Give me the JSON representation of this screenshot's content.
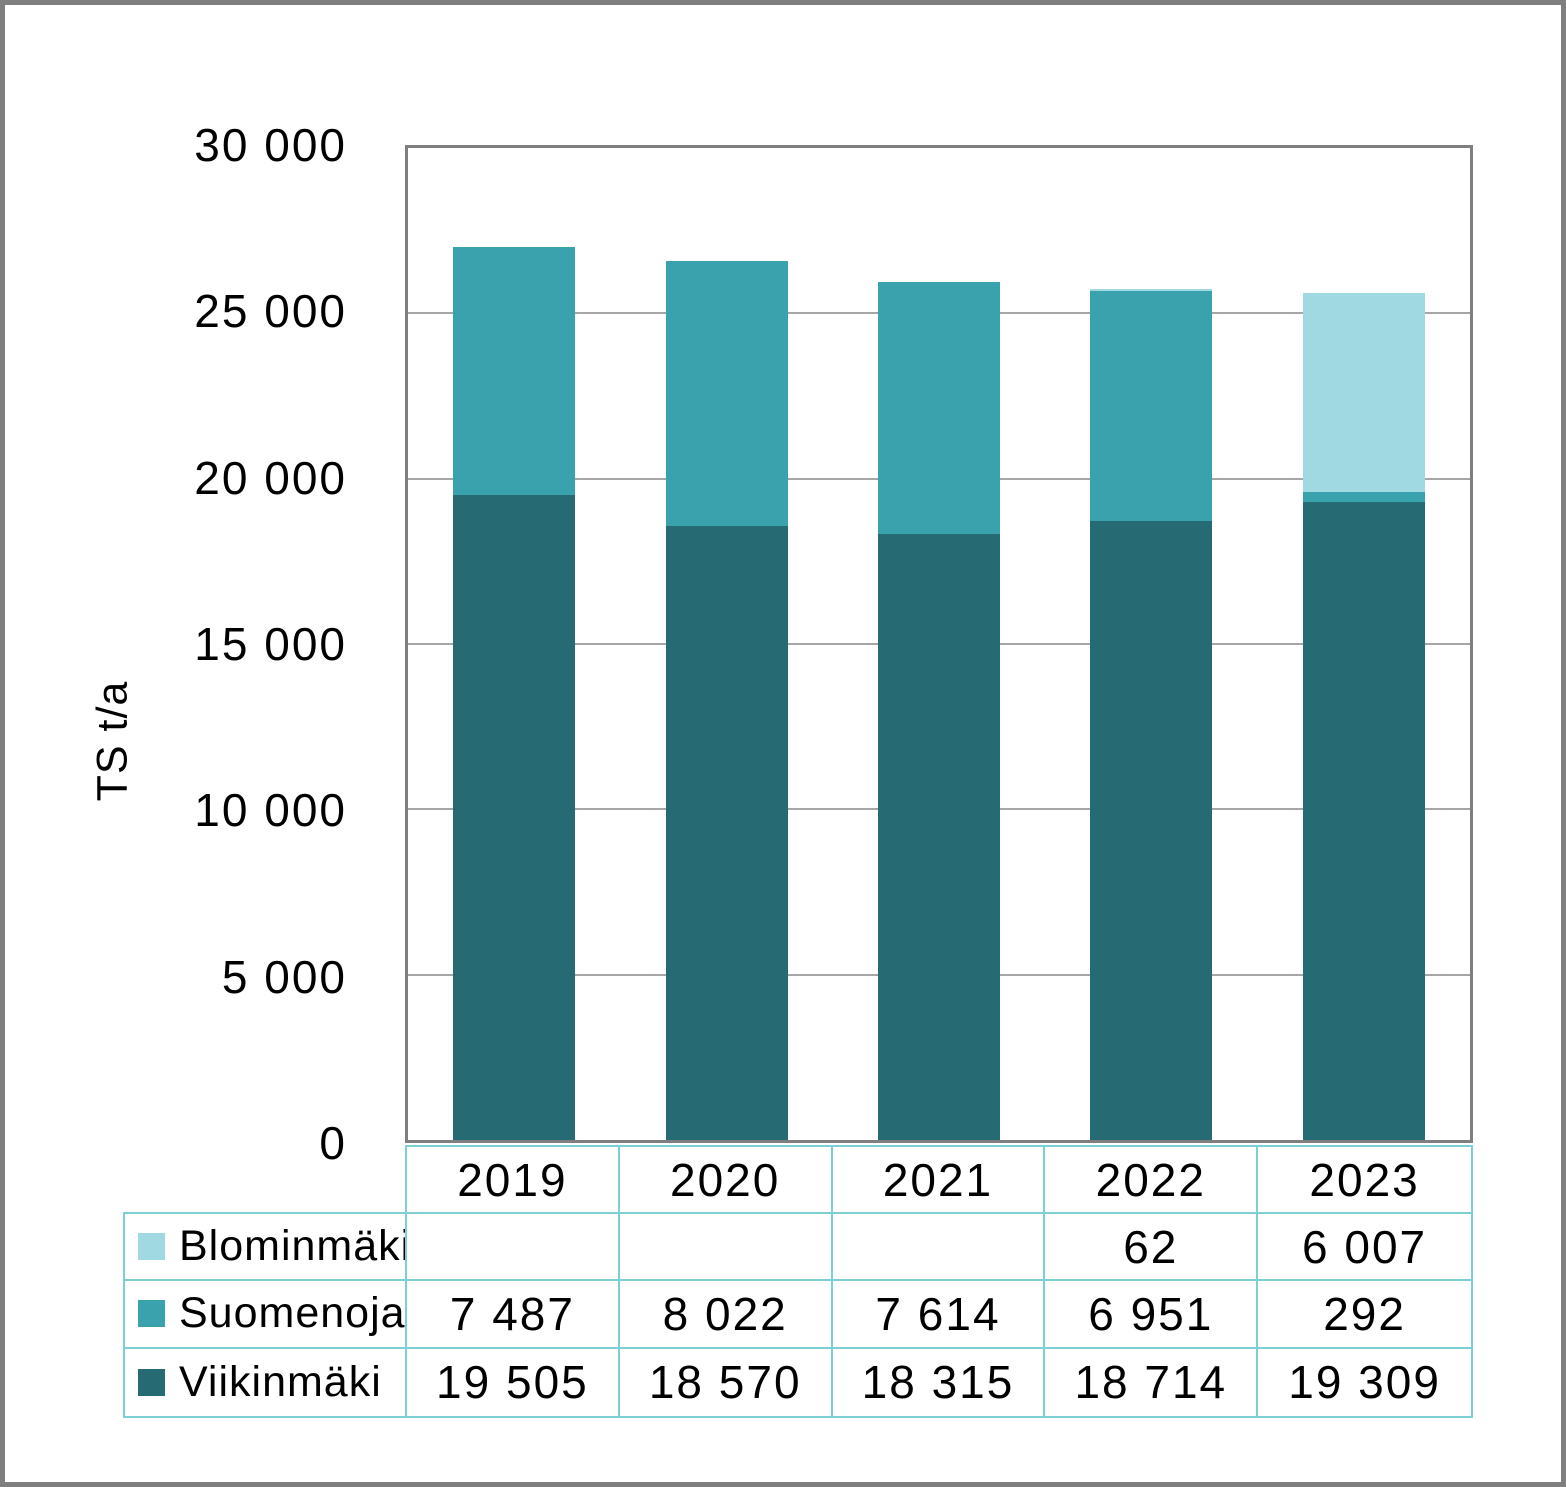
{
  "chart_data": {
    "type": "bar",
    "stacked": true,
    "title": "",
    "xlabel": "",
    "ylabel": "TS t/a",
    "ylim": [
      0,
      30000
    ],
    "ytick_step": 5000,
    "ytick_labels": [
      "30 000",
      "25 000",
      "20 000",
      "15 000",
      "10 000",
      "5 000",
      "0"
    ],
    "grid": true,
    "legend_position": "table-left-below",
    "categories": [
      "2019",
      "2020",
      "2021",
      "2022",
      "2023"
    ],
    "series": [
      {
        "name": "Viikinmäki",
        "color": "#266b73",
        "values": [
          19505,
          18570,
          18315,
          18714,
          19309
        ]
      },
      {
        "name": "Suomenoja",
        "color": "#3aa2ad",
        "values": [
          7487,
          8022,
          7614,
          6951,
          292
        ]
      },
      {
        "name": "Blominmäki",
        "color": "#a1d9e3",
        "values": [
          null,
          null,
          null,
          62,
          6007
        ]
      }
    ]
  },
  "data_table": {
    "year_header": [
      "2019",
      "2020",
      "2021",
      "2022",
      "2023"
    ],
    "rows": [
      {
        "label": "Blominmäki",
        "swatch_color": "#a1d9e3",
        "values": [
          "",
          "",
          "",
          "62",
          "6 007"
        ]
      },
      {
        "label": "Suomenoja",
        "swatch_color": "#3aa2ad",
        "values": [
          "7 487",
          "8 022",
          "7 614",
          "6 951",
          "292"
        ]
      },
      {
        "label": "Viikinmäki",
        "swatch_color": "#266b73",
        "values": [
          "19 505",
          "18 570",
          "18 315",
          "18 714",
          "19 309"
        ]
      }
    ]
  },
  "style_colors": {
    "frame_border": "#7f7f7f",
    "plot_border": "#7f7f7f",
    "gridline": "#a6a6a6",
    "table_border": "#7cd0d4",
    "text": "#000000"
  }
}
